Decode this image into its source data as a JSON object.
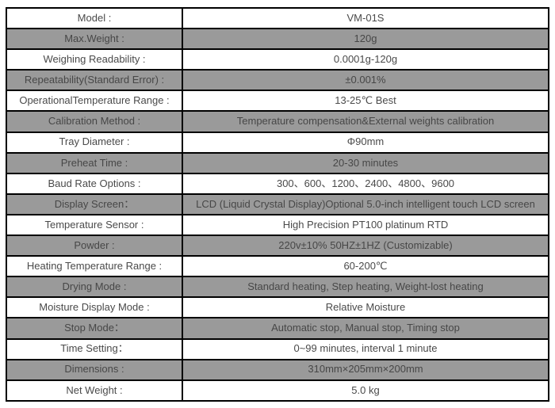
{
  "document": {
    "title": "VM-01S Moisture Analyzer Specification Table"
  },
  "colors": {
    "border": "#000000",
    "row_bg": "#ffffff",
    "row_alt_bg": "#9a9a9a",
    "text": "#4a4a4a",
    "alt_text": "#474747"
  },
  "table": {
    "columns": [
      "parameter",
      "value"
    ],
    "rows": [
      {
        "label": "Model :",
        "value": "VM-01S"
      },
      {
        "label": "Max.Weight :",
        "value": "120g"
      },
      {
        "label": "Weighing Readability :",
        "value": "0.0001g-120g"
      },
      {
        "label": "Repeatability(Standard Error) :",
        "value": "±0.001%"
      },
      {
        "label": "OperationalTemperature Range :",
        "value": "13-25℃ Best"
      },
      {
        "label": "Calibration Method :",
        "value": "Temperature compensation&External weights calibration"
      },
      {
        "label": "Tray Diameter :",
        "value": "Φ90mm"
      },
      {
        "label": "Preheat Time :",
        "value": "20-30 minutes"
      },
      {
        "label": "Baud Rate Options :",
        "value": "300、600、1200、2400、4800、9600"
      },
      {
        "label": "Display Screen：",
        "value": "LCD (Liquid Crystal Display)Optional 5.0-inch intelligent touch LCD screen"
      },
      {
        "label": "Temperature Sensor :",
        "value": "High Precision PT100 platinum RTD"
      },
      {
        "label": "Powder :",
        "value": "220v±10%  50HZ±1HZ (Customizable)"
      },
      {
        "label": "Heating Temperature Range :",
        "value": "60-200℃"
      },
      {
        "label": "Drying Mode :",
        "value": "Standard heating, Step heating, Weight-lost heating"
      },
      {
        "label": "Moisture Display Mode :",
        "value": "Relative Moisture"
      },
      {
        "label": "Stop Mode：",
        "value": "Automatic stop, Manual stop, Timing stop"
      },
      {
        "label": "Time Setting：",
        "value": "0~99 minutes, interval 1 minute"
      },
      {
        "label": "Dimensions :",
        "value": "310mm×205mm×200mm"
      },
      {
        "label": "Net Weight :",
        "value": "5.0 kg"
      }
    ]
  }
}
